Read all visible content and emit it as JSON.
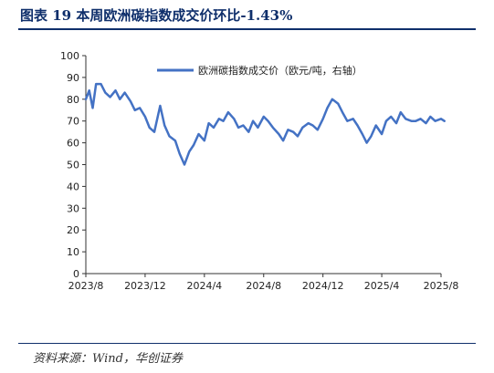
{
  "header": {
    "title": "图表 19   本周欧洲碳指数成交价环比-1.43%"
  },
  "footer": {
    "source": "资料来源：Wind，华创证券"
  },
  "chart_data": {
    "type": "line",
    "title": "",
    "xlabel": "",
    "ylabel": "",
    "ylim": [
      0,
      100
    ],
    "yticks": [
      0,
      10,
      20,
      30,
      40,
      50,
      60,
      70,
      80,
      90,
      100
    ],
    "xticks": [
      "2023/8",
      "2023/12",
      "2024/4",
      "2024/8",
      "2024/12",
      "2025/4",
      "2025/8"
    ],
    "legend": "top-right",
    "grid": false,
    "series": [
      {
        "name": "欧洲碳指数成交价（欧元/吨，右轴）",
        "color": "#4472c4",
        "x": [
          "2023/8/1",
          "2023/8/8",
          "2023/8/15",
          "2023/8/22",
          "2023/9/1",
          "2023/9/10",
          "2023/9/20",
          "2023/10/1",
          "2023/10/10",
          "2023/10/20",
          "2023/11/1",
          "2023/11/10",
          "2023/11/20",
          "2023/12/1",
          "2023/12/10",
          "2023/12/20",
          "2024/1/1",
          "2024/1/10",
          "2024/1/20",
          "2024/2/1",
          "2024/2/10",
          "2024/2/20",
          "2024/3/1",
          "2024/3/10",
          "2024/3/20",
          "2024/4/1",
          "2024/4/10",
          "2024/4/20",
          "2024/5/1",
          "2024/5/10",
          "2024/5/20",
          "2024/6/1",
          "2024/6/10",
          "2024/6/20",
          "2024/7/1",
          "2024/7/10",
          "2024/7/20",
          "2024/8/1",
          "2024/8/10",
          "2024/8/20",
          "2024/9/1",
          "2024/9/10",
          "2024/9/20",
          "2024/10/1",
          "2024/10/10",
          "2024/10/20",
          "2024/11/1",
          "2024/11/10",
          "2024/11/20",
          "2024/12/1",
          "2024/12/10",
          "2024/12/20",
          "2025/1/1",
          "2025/1/10",
          "2025/1/20",
          "2025/2/1",
          "2025/2/10",
          "2025/2/20",
          "2025/3/1",
          "2025/3/10",
          "2025/3/20",
          "2025/4/1",
          "2025/4/10",
          "2025/4/20",
          "2025/5/1",
          "2025/5/10",
          "2025/5/20",
          "2025/6/1",
          "2025/6/10",
          "2025/6/20",
          "2025/7/1",
          "2025/7/10",
          "2025/7/20",
          "2025/8/1",
          "2025/8/8"
        ],
        "values": [
          80,
          84,
          76,
          87,
          87,
          83,
          81,
          84,
          80,
          83,
          79,
          75,
          76,
          72,
          67,
          65,
          77,
          68,
          63,
          61,
          55,
          50,
          56,
          59,
          64,
          61,
          69,
          67,
          71,
          70,
          74,
          71,
          67,
          68,
          65,
          70,
          67,
          72,
          70,
          67,
          64,
          61,
          66,
          65,
          63,
          67,
          69,
          68,
          66,
          71,
          76,
          80,
          78,
          74,
          70,
          71,
          68,
          64,
          60,
          63,
          68,
          64,
          70,
          72,
          69,
          74,
          71,
          70,
          70,
          71,
          69,
          72,
          70,
          71,
          70
        ]
      }
    ]
  }
}
